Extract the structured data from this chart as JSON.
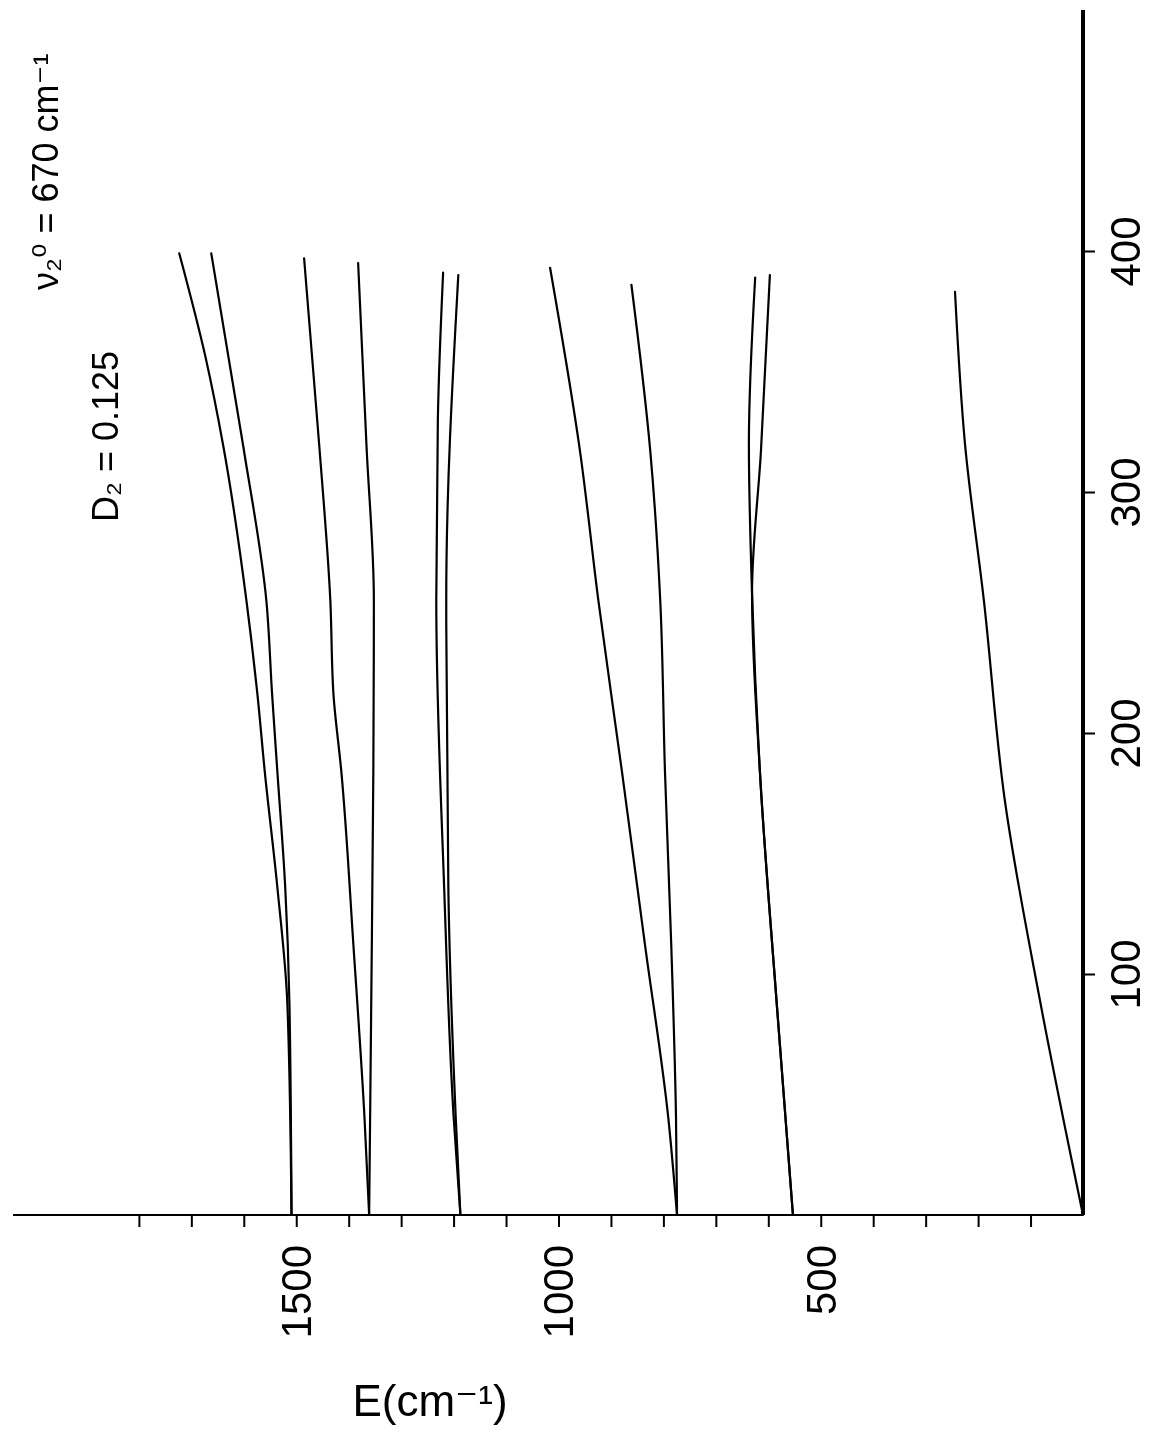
{
  "chart_data": {
    "type": "line",
    "xlabel": "E(cm⁻¹)",
    "annotations": [
      "ν₂⁰ = 670 cm⁻¹",
      "D₂ = 0.125"
    ],
    "xlim": [
      2040,
      0
    ],
    "ylim": [
      0,
      500
    ],
    "yticks": [
      100,
      200,
      300,
      400
    ],
    "xticks": [
      {
        "value": 100,
        "label": null
      },
      {
        "value": 200,
        "label": null
      },
      {
        "value": 300,
        "label": null
      },
      {
        "value": 400,
        "label": null
      },
      500,
      {
        "value": 600,
        "label": null
      },
      {
        "value": 700,
        "label": null
      },
      {
        "value": 800,
        "label": null
      },
      {
        "value": 900,
        "label": null
      },
      1000,
      {
        "value": 1100,
        "label": null
      },
      {
        "value": 1200,
        "label": null
      },
      {
        "value": 1300,
        "label": null
      },
      {
        "value": 1400,
        "label": null
      },
      1500,
      {
        "value": 1600,
        "label": null
      },
      {
        "value": 1700,
        "label": null
      },
      {
        "value": 1800,
        "label": null
      }
    ],
    "series": [
      {
        "color": "#000000",
        "values": [
          0,
          88,
          136,
          184,
          216,
          255,
          319,
          356,
          399
        ],
        "x": [
          1509,
          1517,
          1536,
          1560,
          1574,
          1595,
          1639,
          1673,
          1723
        ]
      },
      {
        "color": "#000000",
        "values": [
          0,
          88,
          136,
          184,
          216,
          255,
          319,
          399
        ],
        "x": [
          1509,
          1513,
          1521,
          1536,
          1546,
          1557,
          1601,
          1662
        ]
      },
      {
        "color": "#000000",
        "values": [
          0,
          41,
          112,
          184,
          216,
          255,
          319,
          397
        ],
        "x": [
          1361,
          1370,
          1391,
          1414,
          1429,
          1435,
          1456,
          1485
        ]
      },
      {
        "color": "#000000",
        "values": [
          0,
          88,
          184,
          255,
          319,
          395
        ],
        "x": [
          1361,
          1357,
          1353,
          1352,
          1366,
          1382
        ]
      },
      {
        "color": "#000000",
        "values": [
          0,
          41,
          136,
          255,
          330,
          391
        ],
        "x": [
          1187,
          1200,
          1218,
          1233,
          1230,
          1220
        ]
      },
      {
        "color": "#000000",
        "values": [
          0,
          41,
          136,
          255,
          390
        ],
        "x": [
          1187,
          1196,
          1210,
          1214,
          1191
        ]
      },
      {
        "color": "#000000",
        "values": [
          0,
          41,
          112,
          184,
          255,
          317,
          393
        ],
        "x": [
          774,
          791,
          835,
          879,
          924,
          959,
          1016
        ]
      },
      {
        "color": "#000000",
        "values": [
          0,
          41,
          112,
          184,
          255,
          317,
          386
        ],
        "x": [
          774,
          776,
          785,
          797,
          806,
          825,
          861
        ]
      },
      {
        "color": "#000000",
        "values": [
          0,
          88,
          184,
          258,
          320,
          389
        ],
        "x": [
          553,
          584,
          616,
          631,
          637,
          625
        ]
      },
      {
        "color": "#000000",
        "values": [
          0,
          88,
          184,
          258,
          317,
          390
        ],
        "x": [
          553,
          584,
          616,
          631,
          614,
          597
        ]
      },
      {
        "color": "#000000",
        "values": [
          0,
          89,
          172,
          255,
          320,
          383
        ],
        "x": [
          0,
          82,
          149,
          189,
          225,
          244
        ]
      }
    ]
  }
}
